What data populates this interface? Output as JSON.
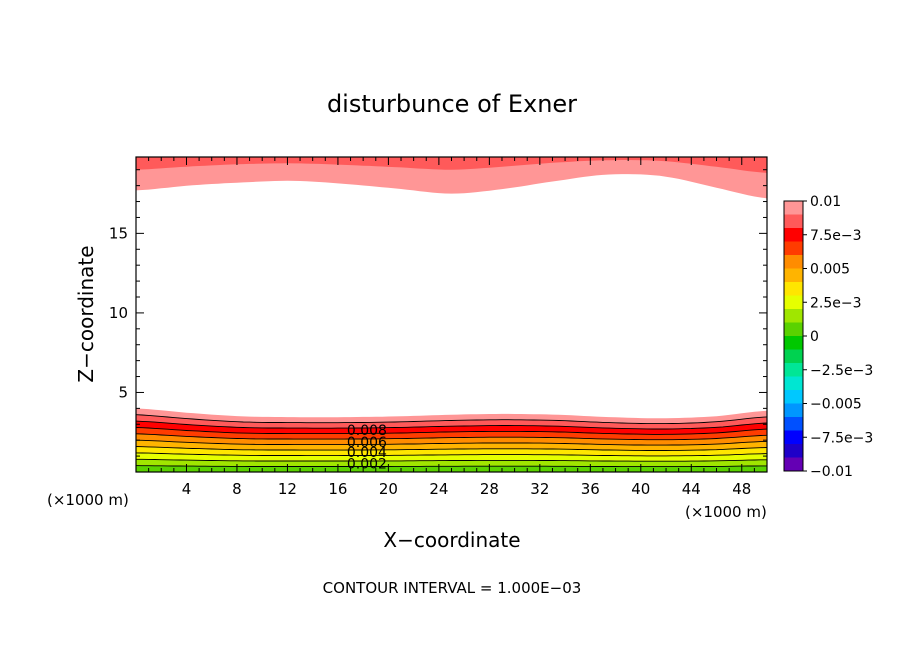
{
  "chart_data": {
    "type": "heatmap",
    "title": "disturbunce of Exner",
    "xlabel": "X−coordinate",
    "ylabel": "Z−coordinate",
    "x_unit_left": "(×1000 m)",
    "x_unit_right": "(×1000 m)",
    "xlim": [
      0,
      50
    ],
    "ylim": [
      0,
      19.8
    ],
    "x_ticks": [
      4,
      8,
      12,
      16,
      20,
      24,
      28,
      32,
      36,
      40,
      44,
      48
    ],
    "x_tick_labels": [
      "4",
      "8",
      "12",
      "16",
      "20",
      "24",
      "28",
      "32",
      "36",
      "40",
      "44",
      "48"
    ],
    "y_ticks": [
      5,
      10,
      15
    ],
    "y_tick_labels": [
      "5",
      "10",
      "15"
    ],
    "footer": "CONTOUR INTERVAL = 1.000E−03",
    "contour_labels": [
      {
        "text": "0.008",
        "x": 18.3,
        "z": 2.65
      },
      {
        "text": "0.006",
        "x": 18.3,
        "z": 1.9
      },
      {
        "text": "0.004",
        "x": 18.3,
        "z": 1.25
      },
      {
        "text": "0.002",
        "x": 18.3,
        "z": 0.55
      }
    ],
    "colorbar": {
      "levels": [
        -0.01,
        -0.0075,
        -0.005,
        -0.0025,
        0,
        0.0025,
        0.005,
        0.0075,
        0.01
      ],
      "labels": [
        "0.01",
        "7.5e−3",
        "0.005",
        "2.5e−3",
        "0",
        "−2.5e−3",
        "−0.005",
        "−7.5e−3",
        "−0.01"
      ],
      "colors": [
        "#ff9696",
        "#ff5a5a",
        "#ff0000",
        "#ff3c00",
        "#ff8c00",
        "#ffb400",
        "#ffe600",
        "#e6ff00",
        "#a0e600",
        "#5ad200",
        "#00c800",
        "#00d250",
        "#00e696",
        "#00e6d2",
        "#00c8ff",
        "#0096ff",
        "#0050ff",
        "#0000ff",
        "#1e00c8",
        "#6400b4"
      ]
    },
    "lower_band": {
      "base_height_km": [
        4.0,
        3.72,
        3.5,
        3.45,
        3.45,
        3.5,
        3.6,
        3.65,
        3.6,
        3.45,
        3.38,
        3.5,
        3.85
      ],
      "colors_bottom_to_top": [
        "#5ad200",
        "#a0e600",
        "#e6ff00",
        "#ffe600",
        "#ffb400",
        "#ff8c00",
        "#ff3c00",
        "#ff0000",
        "#ff5a5a",
        "#ff9696"
      ]
    },
    "upper_band": {
      "inner_edge_km": [
        17.7,
        18.0,
        18.2,
        18.3,
        18.1,
        17.8,
        17.5,
        17.8,
        18.3,
        18.7,
        18.6,
        17.9,
        17.2
      ],
      "outer_edge_km": [
        19.0,
        19.2,
        19.35,
        19.4,
        19.3,
        19.15,
        19.0,
        19.2,
        19.45,
        19.6,
        19.55,
        19.2,
        18.8
      ],
      "colors": [
        "#ff9696",
        "#ff5a5a"
      ]
    }
  }
}
